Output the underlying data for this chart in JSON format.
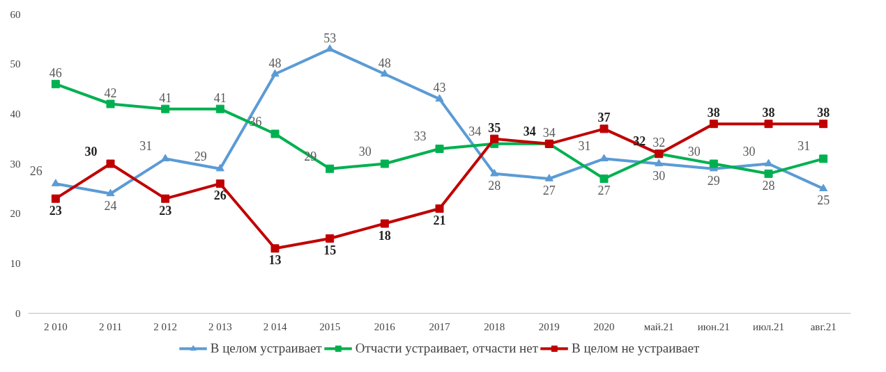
{
  "chart_data": {
    "type": "line",
    "categories": [
      "2 010",
      "2 011",
      "2 012",
      "2 013",
      "2 014",
      "2015",
      "2016",
      "2017",
      "2018",
      "2019",
      "2020",
      "май.21",
      "июн.21",
      "июл.21",
      "авг.21"
    ],
    "series": [
      {
        "name": "В целом устраивает",
        "color": "#5b9bd5",
        "marker": "triangle",
        "values": [
          26,
          24,
          31,
          29,
          48,
          53,
          48,
          43,
          28,
          27,
          31,
          30,
          29,
          30,
          25
        ]
      },
      {
        "name": "Отчасти устраивает, отчасти нет",
        "color": "#00b050",
        "marker": "square",
        "values": [
          46,
          42,
          41,
          41,
          36,
          29,
          30,
          33,
          34,
          34,
          27,
          32,
          30,
          28,
          31
        ]
      },
      {
        "name": "В целом не устраивает",
        "color": "#c00000",
        "marker": "square",
        "values": [
          23,
          30,
          23,
          26,
          13,
          15,
          18,
          21,
          35,
          34,
          37,
          32,
          38,
          38,
          38
        ]
      }
    ],
    "ylim": [
      0,
      60
    ],
    "yticks": [
      0,
      10,
      20,
      30,
      40,
      50,
      60
    ],
    "grid": false,
    "legend": "bottom",
    "data_labels": true,
    "line_style": "solid"
  }
}
